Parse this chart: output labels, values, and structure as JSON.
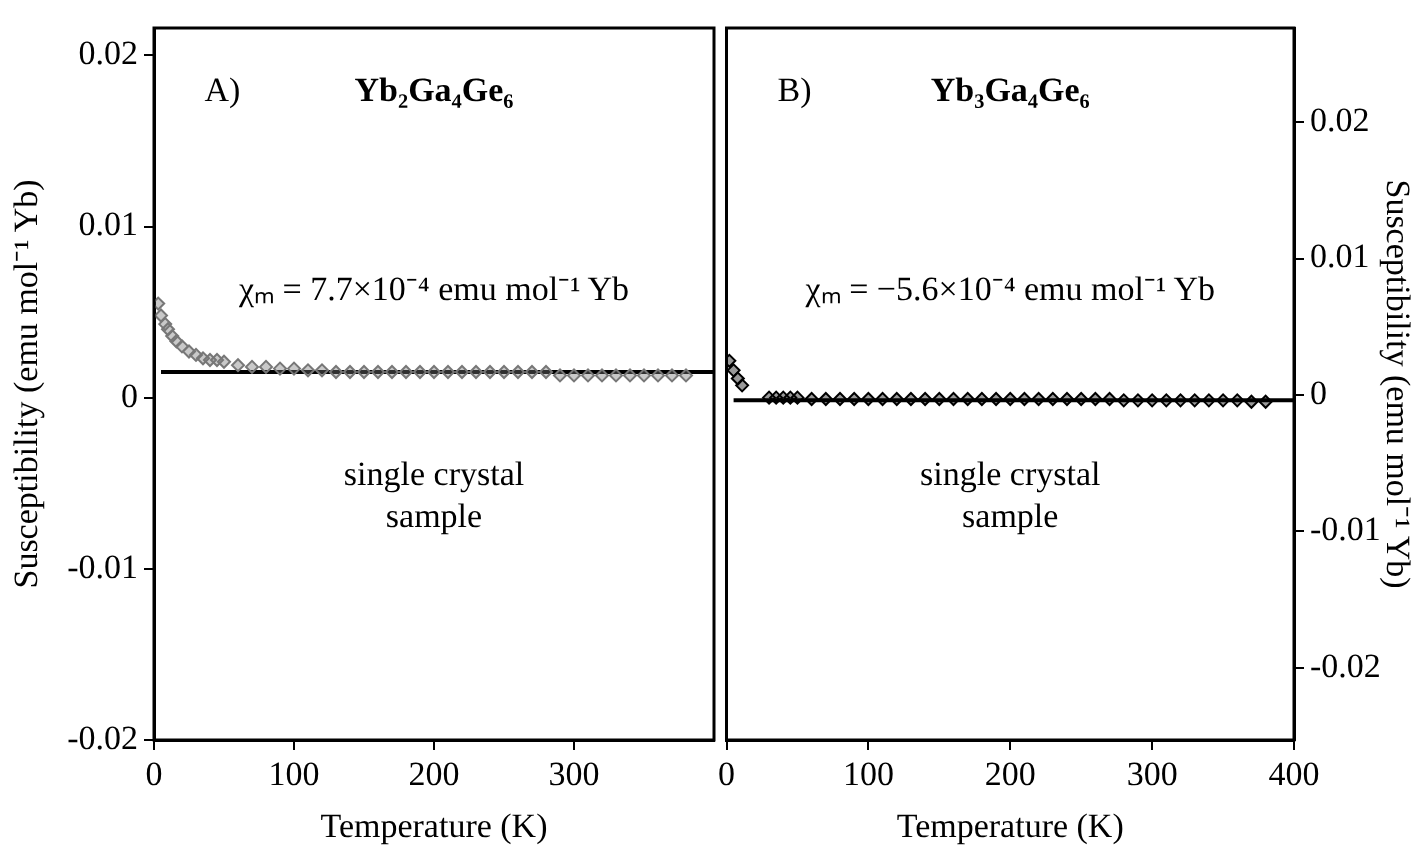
{
  "chart_data": [
    {
      "type": "scatter",
      "xlabel": "Temperature (K)",
      "ylabel": "Susceptibility (emu mol⁻¹ Yb)",
      "annotations": [
        "A)",
        "Yb₂Ga₄Ge₆",
        "χₘ = 7.7×10⁻⁴ emu mol⁻¹ Yb",
        "single crystal\nsample"
      ],
      "xlim": [
        0,
        400
      ],
      "xticks": [
        0,
        100,
        200,
        300
      ],
      "ylim": [
        -0.02,
        0.0216
      ],
      "yticks": [
        -0.02,
        -0.01,
        0,
        0.01,
        0.02
      ],
      "grid": false,
      "legend": false,
      "marker": "diamond",
      "series": [
        {
          "type": "scatter",
          "color": "#777777",
          "x": [
            3,
            5,
            8,
            10,
            13,
            16,
            20,
            25,
            30,
            35,
            40,
            45,
            50,
            60,
            70,
            80,
            90,
            100,
            110,
            120,
            130,
            140,
            150,
            160,
            170,
            180,
            190,
            200,
            210,
            220,
            230,
            240,
            250,
            260,
            270,
            280,
            290,
            300,
            310,
            320,
            330,
            340,
            350,
            360,
            370,
            380
          ],
          "values": [
            0.0055,
            0.0048,
            0.0043,
            0.004,
            0.0036,
            0.0033,
            0.003,
            0.0027,
            0.0025,
            0.0023,
            0.0022,
            0.0022,
            0.0021,
            0.0019,
            0.0018,
            0.0018,
            0.0017,
            0.0017,
            0.0016,
            0.0016,
            0.0015,
            0.0015,
            0.0015,
            0.0015,
            0.0015,
            0.0015,
            0.0015,
            0.0015,
            0.0015,
            0.0015,
            0.0015,
            0.0015,
            0.0015,
            0.0015,
            0.0015,
            0.0015,
            0.0013,
            0.0013,
            0.0013,
            0.0013,
            0.0013,
            0.0013,
            0.0013,
            0.0013,
            0.0013,
            0.0013
          ]
        },
        {
          "type": "line",
          "color": "#000000",
          "marker": "none",
          "x": [
            5,
            400
          ],
          "values": [
            0.0015,
            0.0015
          ]
        }
      ]
    },
    {
      "type": "scatter",
      "xlabel": "Temperature (K)",
      "y2label": "Susceptibility (emu mol⁻¹ Yb)",
      "annotations": [
        "B)",
        "Yb₃Ga₄Ge₆",
        "χₘ = −5.6×10⁻⁴ emu mol⁻¹ Yb",
        "single crystal\nsample"
      ],
      "xlim": [
        0,
        400
      ],
      "xticks": [
        0,
        100,
        200,
        300,
        400
      ],
      "y2lim": [
        -0.0253,
        0.0269
      ],
      "y2ticks": [
        -0.02,
        -0.01,
        0,
        0.01,
        0.02
      ],
      "grid": false,
      "legend": false,
      "marker": "diamond",
      "series": [
        {
          "type": "scatter",
          "axis": "y2",
          "color": "#000000",
          "x": [
            2,
            5,
            8,
            11,
            30,
            35,
            40,
            45,
            50,
            60,
            70,
            80,
            90,
            100,
            110,
            120,
            130,
            140,
            150,
            160,
            170,
            180,
            190,
            200,
            210,
            220,
            230,
            240,
            250,
            260,
            270,
            280,
            290,
            300,
            310,
            320,
            330,
            340,
            350,
            360,
            370,
            380
          ],
          "values": [
            0.0025,
            0.0018,
            0.0012,
            0.0007,
            -0.0002,
            -0.0002,
            -0.0002,
            -0.0002,
            -0.0002,
            -0.0003,
            -0.0003,
            -0.0003,
            -0.0003,
            -0.0003,
            -0.0003,
            -0.0003,
            -0.0003,
            -0.0003,
            -0.0003,
            -0.0003,
            -0.0003,
            -0.0003,
            -0.0003,
            -0.0003,
            -0.0003,
            -0.0003,
            -0.0003,
            -0.0003,
            -0.0003,
            -0.0003,
            -0.0003,
            -0.0004,
            -0.0004,
            -0.0004,
            -0.0004,
            -0.0004,
            -0.0004,
            -0.0004,
            -0.0004,
            -0.0004,
            -0.0005,
            -0.0005
          ]
        },
        {
          "type": "line",
          "axis": "y2",
          "color": "#000000",
          "marker": "none",
          "x": [
            5,
            400
          ],
          "values": [
            -0.0004,
            -0.0004
          ]
        }
      ]
    }
  ]
}
